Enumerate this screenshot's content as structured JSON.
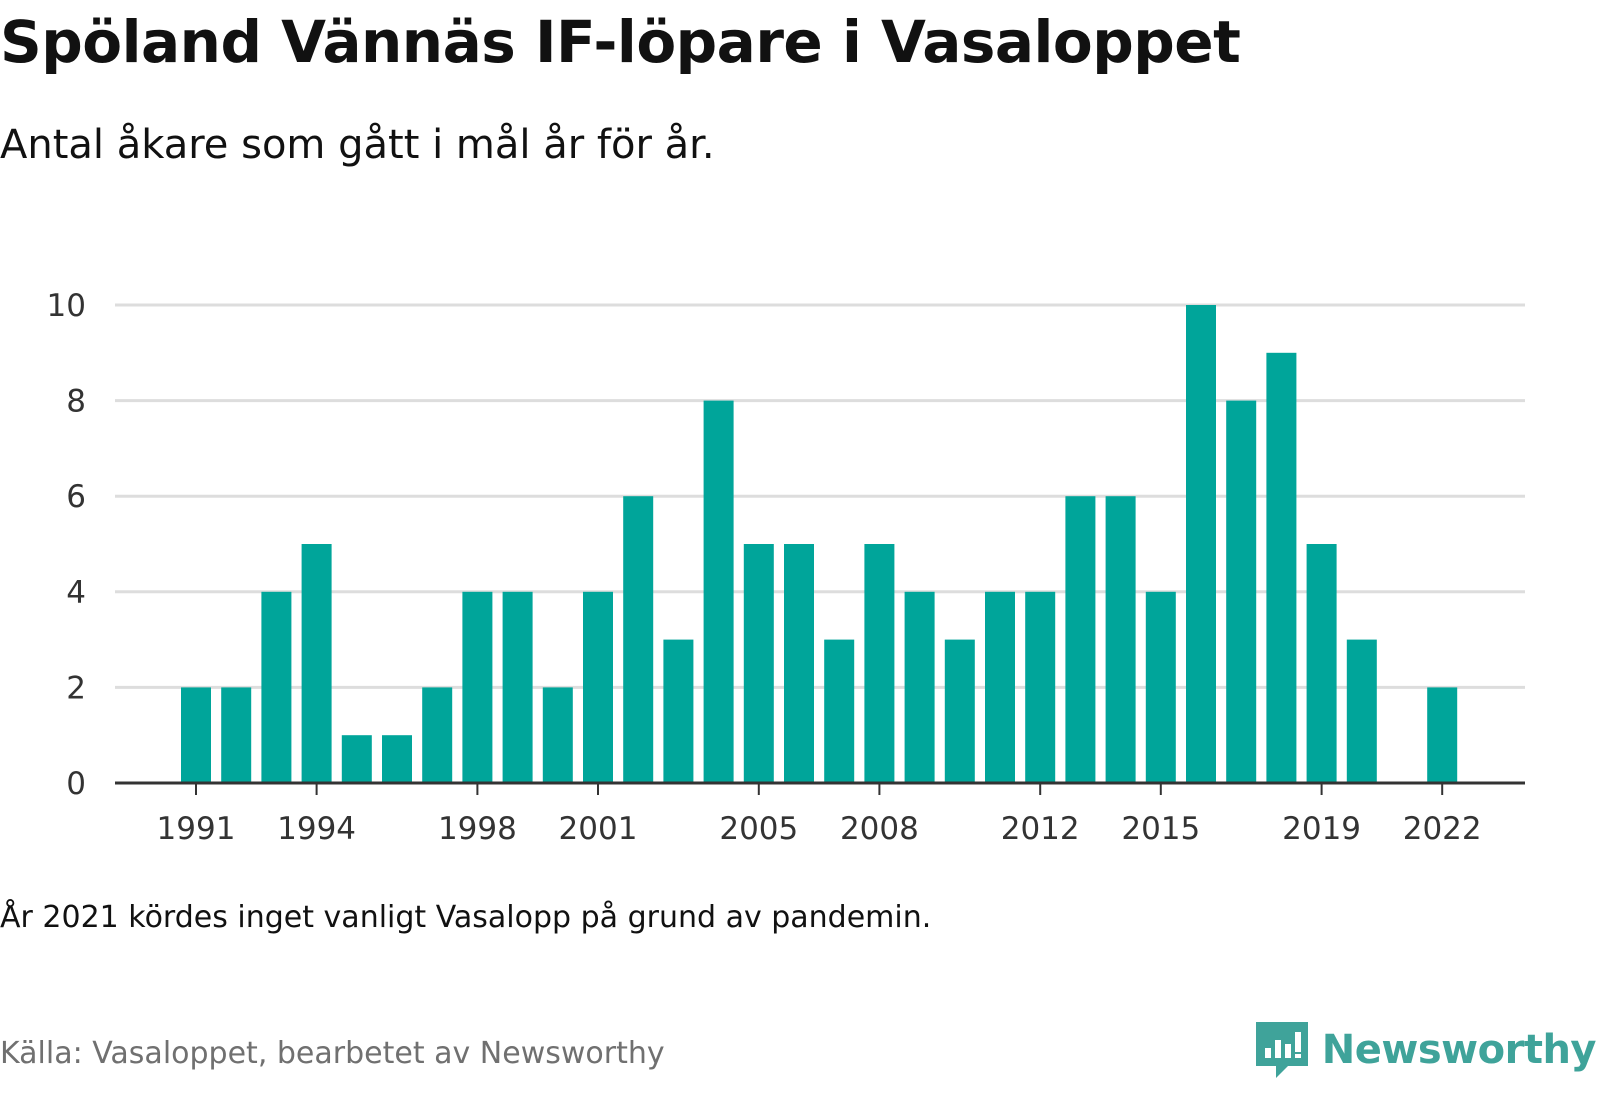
{
  "title": "Spöland Vännäs IF-löpare i Vasaloppet",
  "subtitle": "Antal åkare som gått i mål år för år.",
  "footnote": "År 2021 kördes inget vanligt Vasalopp på grund av pandemin.",
  "source": "Källa: Vasaloppet, bearbetet av Newsworthy",
  "brand": {
    "name": "Newsworthy",
    "icon": "newsworthy-logo-icon"
  },
  "colors": {
    "bar": "#00a59a",
    "grid": "#dddddd",
    "axis": "#333333",
    "tick_text": "#333333"
  },
  "chart_data": {
    "type": "bar",
    "x": [
      1991,
      1992,
      1993,
      1994,
      1995,
      1996,
      1997,
      1998,
      1999,
      2000,
      2001,
      2002,
      2003,
      2004,
      2005,
      2006,
      2007,
      2008,
      2009,
      2010,
      2011,
      2012,
      2013,
      2014,
      2015,
      2016,
      2017,
      2018,
      2019,
      2020,
      2021,
      2022
    ],
    "values": [
      2,
      2,
      4,
      5,
      1,
      1,
      2,
      4,
      4,
      2,
      4,
      6,
      3,
      8,
      5,
      5,
      3,
      5,
      4,
      3,
      4,
      4,
      6,
      6,
      4,
      10,
      8,
      9,
      5,
      3,
      null,
      2
    ],
    "x_tick_labels": [
      "1991",
      "1994",
      "1998",
      "2001",
      "2005",
      "2008",
      "2012",
      "2015",
      "2019",
      "2022"
    ],
    "y_ticks": [
      0,
      2,
      4,
      6,
      8,
      10
    ],
    "ylim": [
      0,
      10
    ],
    "xlabel": "",
    "ylabel": "",
    "grid": true,
    "legend": "none"
  }
}
